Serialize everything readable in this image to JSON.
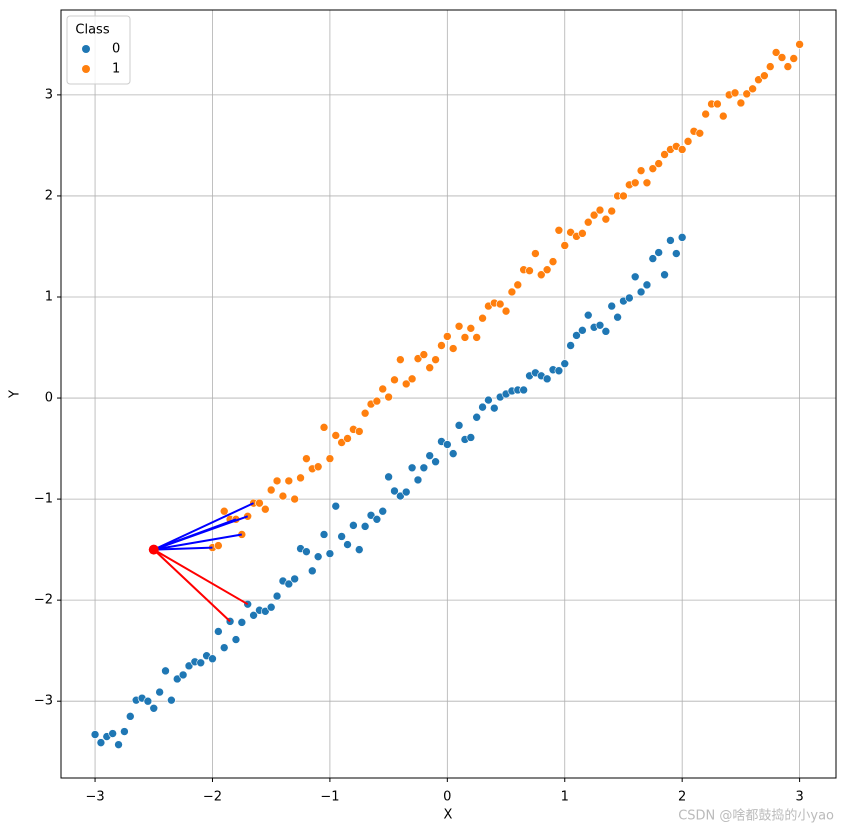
{
  "chart_data": {
    "type": "scatter",
    "x_label": "X",
    "y_label": "Y",
    "xlim": [
      -3.29,
      3.31
    ],
    "ylim": [
      -3.76,
      3.84
    ],
    "xticks": [
      {
        "value": -3,
        "label": "−3"
      },
      {
        "value": -2,
        "label": "−2"
      },
      {
        "value": -1,
        "label": "−1"
      },
      0,
      1,
      2,
      3
    ],
    "yticks": [
      {
        "value": -3,
        "label": "−3"
      },
      {
        "value": -2,
        "label": "−2"
      },
      {
        "value": -1,
        "label": "−1"
      },
      0,
      1,
      2,
      3
    ],
    "grid": true,
    "legend_title": "Class",
    "legend_position": "upper left",
    "series": [
      {
        "name": "0",
        "color": "#1f77b4",
        "x": [
          -3.0,
          -2.95,
          -2.9,
          -2.85,
          -2.8,
          -2.75,
          -2.7,
          -2.65,
          -2.6,
          -2.55,
          -2.5,
          -2.45,
          -2.4,
          -2.35,
          -2.3,
          -2.25,
          -2.2,
          -2.15,
          -2.1,
          -2.05,
          -2.0,
          -1.95,
          -1.9,
          -1.85,
          -1.8,
          -1.75,
          -1.7,
          -1.65,
          -1.6,
          -1.55,
          -1.5,
          -1.45,
          -1.4,
          -1.35,
          -1.3,
          -1.25,
          -1.2,
          -1.15,
          -1.1,
          -1.05,
          -1.0,
          -0.95,
          -0.9,
          -0.85,
          -0.8,
          -0.75,
          -0.7,
          -0.65,
          -0.6,
          -0.55,
          -0.5,
          -0.45,
          -0.4,
          -0.35,
          -0.3,
          -0.25,
          -0.2,
          -0.15,
          -0.1,
          -0.05,
          0.0,
          0.05,
          0.1,
          0.15,
          0.2,
          0.25,
          0.3,
          0.35,
          0.4,
          0.45,
          0.5,
          0.55,
          0.6,
          0.65,
          0.7,
          0.75,
          0.8,
          0.85,
          0.9,
          0.95,
          1.0,
          1.05,
          1.1,
          1.15,
          1.2,
          1.25,
          1.3,
          1.35,
          1.4,
          1.45,
          1.5,
          1.55,
          1.6,
          1.65,
          1.7,
          1.75,
          1.8,
          1.85,
          1.9,
          1.95,
          2.0
        ],
        "values": [
          -3.33,
          -3.41,
          -3.35,
          -3.32,
          -3.43,
          -3.3,
          -3.15,
          -2.99,
          -2.97,
          -3.0,
          -3.07,
          -2.91,
          -2.7,
          -2.99,
          -2.78,
          -2.74,
          -2.65,
          -2.61,
          -2.62,
          -2.55,
          -2.58,
          -2.31,
          -2.47,
          -2.21,
          -2.39,
          -2.22,
          -2.04,
          -2.15,
          -2.1,
          -2.11,
          -2.07,
          -1.96,
          -1.81,
          -1.84,
          -1.79,
          -1.49,
          -1.52,
          -1.71,
          -1.57,
          -1.35,
          -1.54,
          -1.07,
          -1.37,
          -1.45,
          -1.26,
          -1.5,
          -1.27,
          -1.16,
          -1.2,
          -1.12,
          -0.78,
          -0.92,
          -0.97,
          -0.93,
          -0.69,
          -0.81,
          -0.69,
          -0.57,
          -0.63,
          -0.43,
          -0.46,
          -0.55,
          -0.27,
          -0.41,
          -0.39,
          -0.19,
          -0.09,
          -0.02,
          -0.1,
          0.01,
          0.04,
          0.07,
          0.08,
          0.08,
          0.22,
          0.25,
          0.22,
          0.19,
          0.28,
          0.27,
          0.34,
          0.52,
          0.62,
          0.67,
          0.82,
          0.7,
          0.72,
          0.66,
          0.91,
          0.8,
          0.96,
          0.99,
          1.2,
          1.05,
          1.12,
          1.38,
          1.44,
          1.22,
          1.56,
          1.43,
          1.59
        ]
      },
      {
        "name": "1",
        "color": "#ff7f0e",
        "x": [
          -2.0,
          -1.95,
          -1.9,
          -1.85,
          -1.8,
          -1.75,
          -1.7,
          -1.65,
          -1.6,
          -1.55,
          -1.5,
          -1.45,
          -1.4,
          -1.35,
          -1.3,
          -1.25,
          -1.2,
          -1.15,
          -1.1,
          -1.05,
          -1.0,
          -0.95,
          -0.9,
          -0.85,
          -0.8,
          -0.75,
          -0.7,
          -0.65,
          -0.6,
          -0.55,
          -0.5,
          -0.45,
          -0.4,
          -0.35,
          -0.3,
          -0.25,
          -0.2,
          -0.15,
          -0.1,
          -0.05,
          0.0,
          0.05,
          0.1,
          0.15,
          0.2,
          0.25,
          0.3,
          0.35,
          0.4,
          0.45,
          0.5,
          0.55,
          0.6,
          0.65,
          0.7,
          0.75,
          0.8,
          0.85,
          0.9,
          0.95,
          1.0,
          1.05,
          1.1,
          1.15,
          1.2,
          1.25,
          1.3,
          1.35,
          1.4,
          1.45,
          1.5,
          1.55,
          1.6,
          1.65,
          1.7,
          1.75,
          1.8,
          1.85,
          1.9,
          1.95,
          2.0,
          2.05,
          2.1,
          2.15,
          2.2,
          2.25,
          2.3,
          2.35,
          2.4,
          2.45,
          2.5,
          2.55,
          2.6,
          2.65,
          2.7,
          2.75,
          2.8,
          2.85,
          2.9,
          2.95,
          3.0
        ],
        "values": [
          -1.48,
          -1.46,
          -1.12,
          -1.2,
          -1.2,
          -1.35,
          -1.17,
          -1.04,
          -1.04,
          -1.1,
          -0.91,
          -0.82,
          -0.97,
          -0.82,
          -1.0,
          -0.79,
          -0.6,
          -0.7,
          -0.68,
          -0.29,
          -0.6,
          -0.37,
          -0.44,
          -0.4,
          -0.31,
          -0.33,
          -0.15,
          -0.06,
          -0.03,
          0.09,
          0.01,
          0.18,
          0.38,
          0.14,
          0.19,
          0.39,
          0.43,
          0.3,
          0.38,
          0.52,
          0.61,
          0.49,
          0.71,
          0.6,
          0.69,
          0.6,
          0.79,
          0.91,
          0.94,
          0.93,
          0.86,
          1.05,
          1.12,
          1.27,
          1.26,
          1.43,
          1.22,
          1.27,
          1.35,
          1.66,
          1.51,
          1.64,
          1.6,
          1.63,
          1.74,
          1.81,
          1.86,
          1.77,
          1.85,
          2.0,
          2.0,
          2.11,
          2.13,
          2.25,
          2.13,
          2.27,
          2.32,
          2.41,
          2.46,
          2.49,
          2.46,
          2.54,
          2.64,
          2.62,
          2.81,
          2.91,
          2.91,
          2.79,
          3.0,
          3.02,
          2.92,
          3.01,
          3.06,
          3.15,
          3.19,
          3.28,
          3.42,
          3.37,
          3.28,
          3.36,
          3.5
        ]
      }
    ],
    "query": {
      "x": -2.5,
      "y": -1.5,
      "color": "#ff0000"
    },
    "neighbors": [
      {
        "x": -1.65,
        "y": -1.04,
        "color": "#0000ff"
      },
      {
        "x": -1.7,
        "y": -1.17,
        "color": "#0000ff"
      },
      {
        "x": -1.8,
        "y": -1.2,
        "color": "#0000ff"
      },
      {
        "x": -1.75,
        "y": -1.35,
        "color": "#0000ff"
      },
      {
        "x": -2.0,
        "y": -1.48,
        "color": "#0000ff"
      },
      {
        "x": -1.7,
        "y": -2.04,
        "color": "#ff0000"
      },
      {
        "x": -1.85,
        "y": -2.21,
        "color": "#ff0000"
      }
    ],
    "watermark": "CSDN @啥都鼓捣的小yao"
  }
}
